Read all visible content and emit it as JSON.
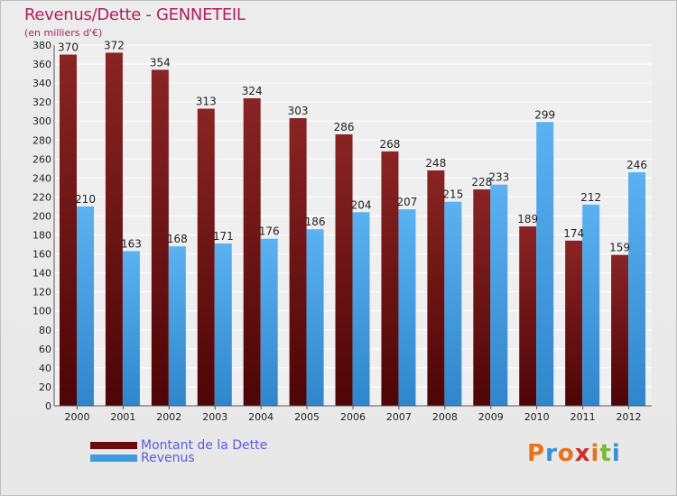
{
  "title": "Revenus/Dette - GENNETEIL",
  "subtitle": "(en milliers d'€)",
  "logo_text": "Proxiti",
  "colors": {
    "title": "#b01f5a",
    "dette": "#7a1414",
    "revenus": "#4aa3e8",
    "legend_text": "#5b5be0"
  },
  "chart_data": {
    "type": "bar",
    "title": "Revenus/Dette - GENNETEIL",
    "ylabel": "(en milliers d'€)",
    "categories": [
      "2000",
      "2001",
      "2002",
      "2003",
      "2004",
      "2005",
      "2006",
      "2007",
      "2008",
      "2009",
      "2010",
      "2011",
      "2012"
    ],
    "series": [
      {
        "name": "Montant de la Dette",
        "values": [
          370,
          372,
          354,
          313,
          324,
          303,
          286,
          268,
          248,
          228,
          189,
          174,
          159
        ]
      },
      {
        "name": "Revenus",
        "values": [
          210,
          163,
          168,
          171,
          176,
          186,
          204,
          207,
          215,
          233,
          299,
          212,
          246
        ]
      }
    ],
    "ylim": [
      0,
      380
    ],
    "ytick_step": 20,
    "grid": true,
    "legend_position": "bottom-left"
  }
}
